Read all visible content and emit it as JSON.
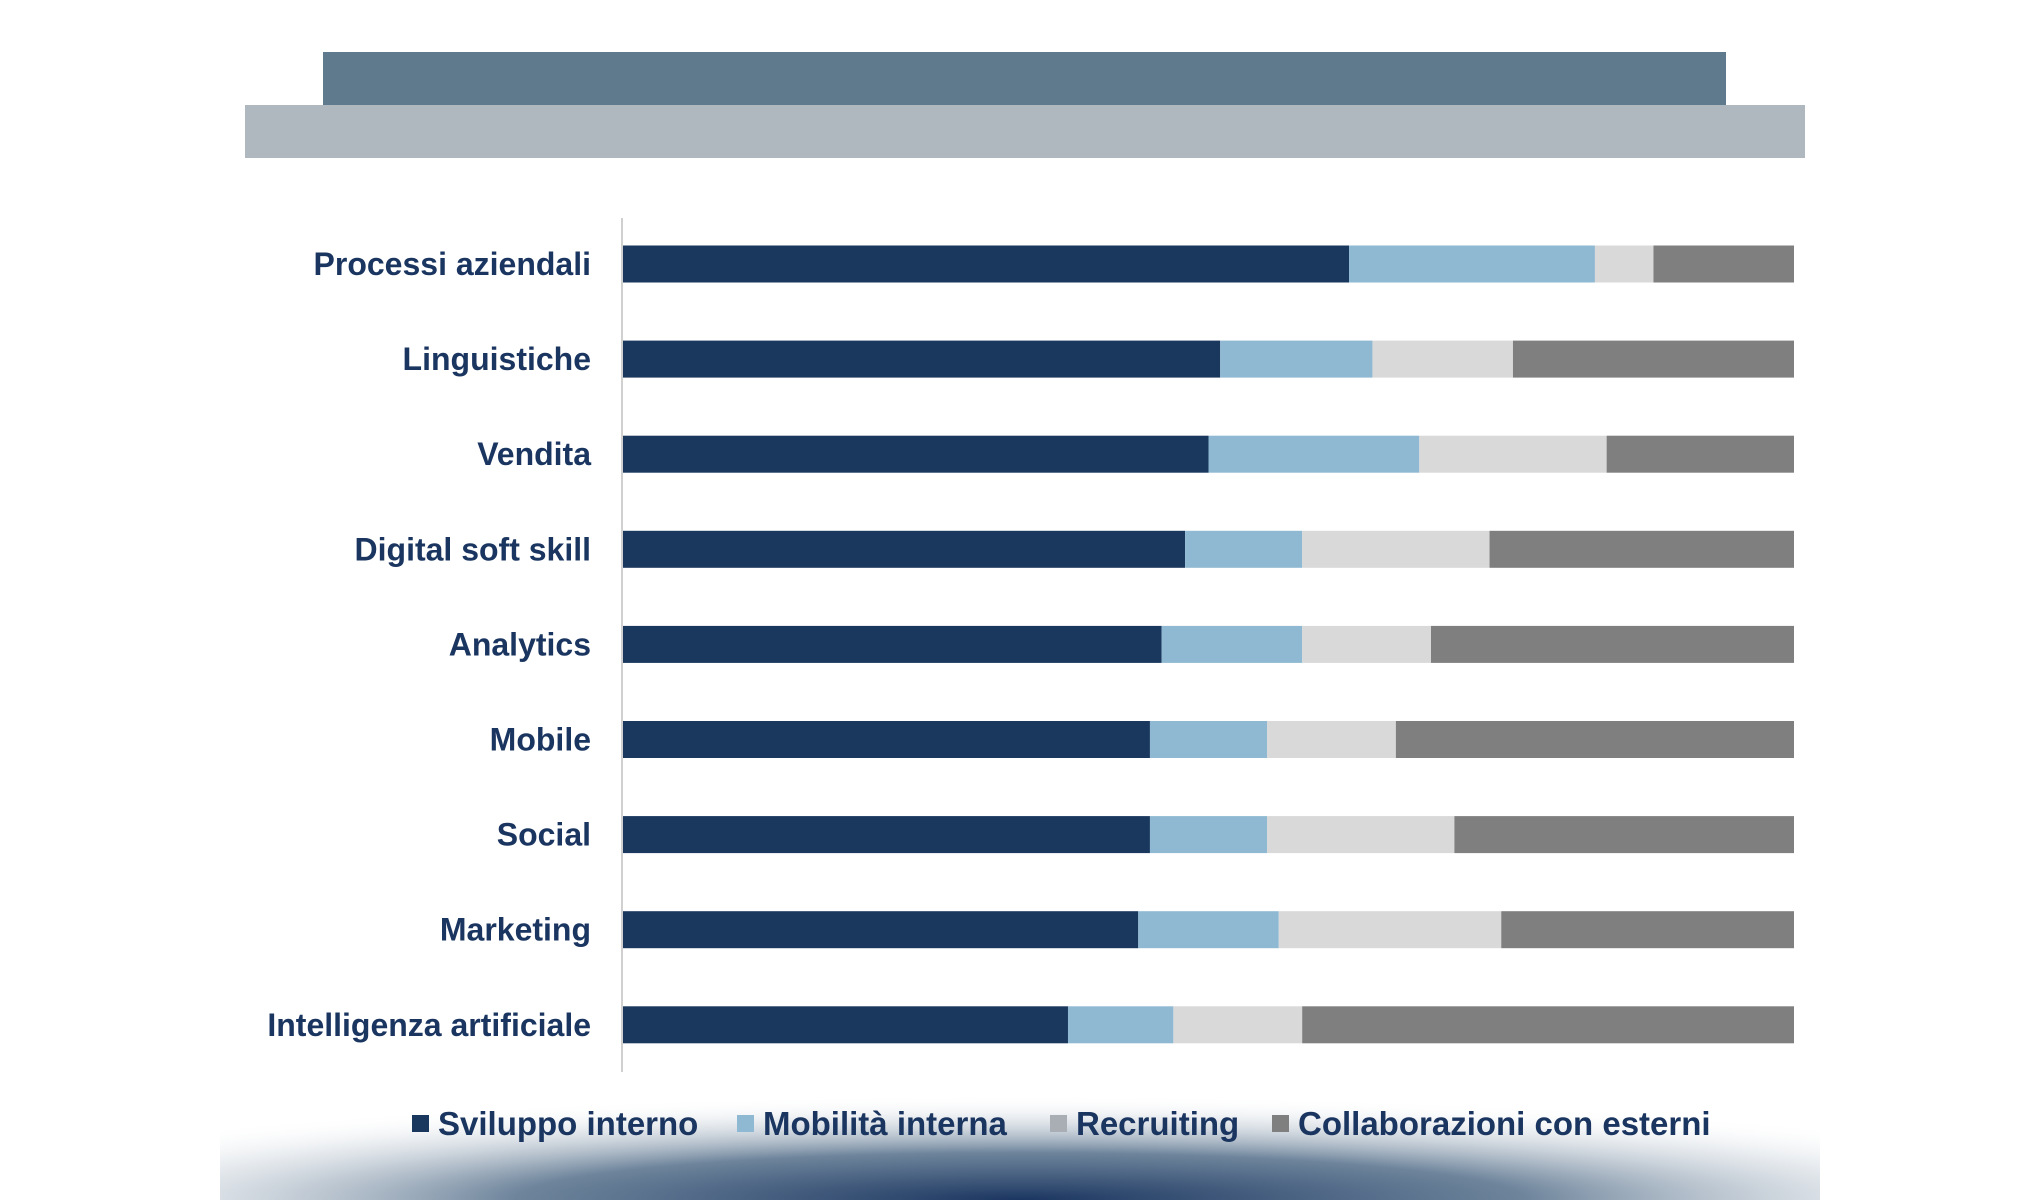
{
  "chart_data": {
    "type": "bar",
    "orientation": "horizontal",
    "stacked": "100%",
    "title": "",
    "xlabel": "",
    "ylabel": "",
    "xlim": [
      0,
      100
    ],
    "grid": false,
    "legend_position": "bottom",
    "categories": [
      "Processi aziendali",
      "Linguistiche",
      "Vendita",
      "Digital soft skill",
      "Analytics",
      "Mobile",
      "Social",
      "Marketing",
      "Intelligenza artificiale"
    ],
    "series": [
      {
        "name": "Sviluppo interno",
        "color": "#1a375e",
        "values": [
          62,
          51,
          50,
          48,
          46,
          45,
          45,
          44,
          38
        ]
      },
      {
        "name": "Mobilità interna",
        "color": "#8fb9d2",
        "values": [
          21,
          13,
          18,
          10,
          12,
          10,
          10,
          12,
          9
        ]
      },
      {
        "name": "Recruiting",
        "color": "#d9d9d9",
        "values": [
          5,
          12,
          16,
          16,
          11,
          11,
          16,
          19,
          11
        ]
      },
      {
        "name": "Collaborazioni con esterni",
        "color": "#7f7f7f",
        "values": [
          12,
          24,
          16,
          26,
          31,
          34,
          29,
          25,
          42
        ]
      }
    ]
  },
  "colors": {
    "banner_dark": "#5f7a8c",
    "banner_light": "#b0b8bf",
    "text": "#1a3560",
    "recruiting_marker": "#a8aeb4"
  }
}
